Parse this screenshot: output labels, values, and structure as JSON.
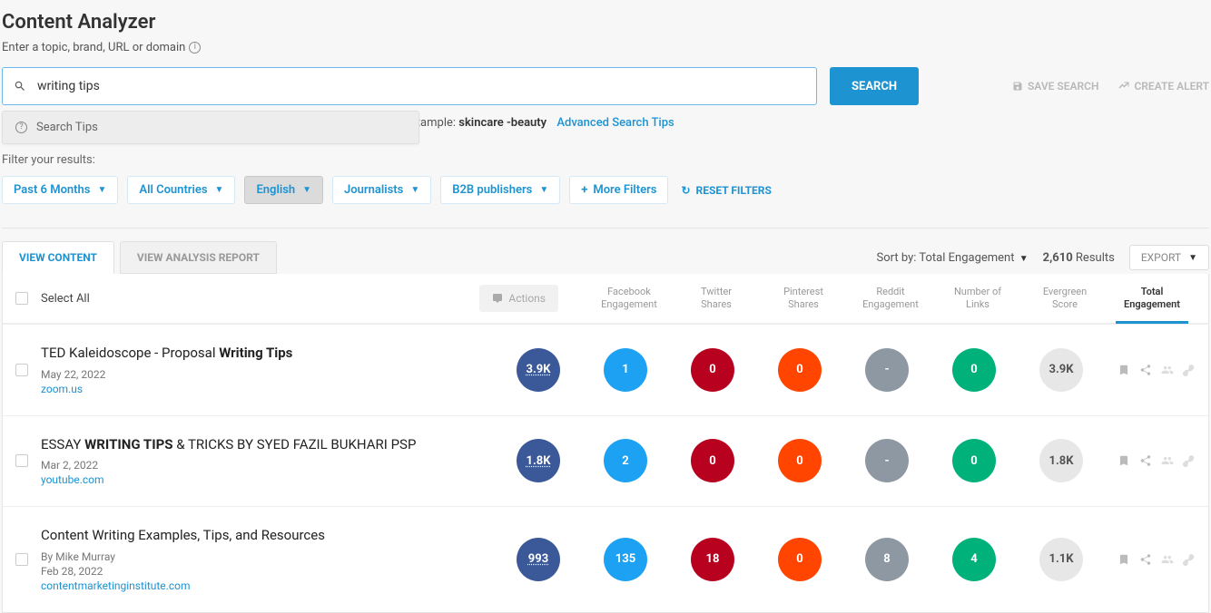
{
  "page_title": "Content Analyzer",
  "subtitle": "Enter a topic, brand, URL or domain",
  "search": {
    "value": "writing tips",
    "placeholder": ""
  },
  "search_button": "SEARCH",
  "header_actions": {
    "save": "SAVE SEARCH",
    "alert": "CREATE ALERT"
  },
  "tips_dropdown": "Search Tips",
  "tips_line_prefix": "                                                                                                                            rms, for example: ",
  "tips_line_example": "skincare -beauty",
  "advanced_tips": "Advanced Search Tips",
  "filter_label": "Filter your results:",
  "filters": [
    {
      "label": "Past 6 Months",
      "active": false
    },
    {
      "label": "All Countries",
      "active": false
    },
    {
      "label": "English",
      "active": true
    },
    {
      "label": "Journalists",
      "active": false
    },
    {
      "label": "B2B publishers",
      "active": false
    }
  ],
  "more_filters": "More Filters",
  "reset_filters": "RESET FILTERS",
  "tabs": {
    "content": "VIEW CONTENT",
    "analysis": "VIEW ANALYSIS REPORT"
  },
  "sort_by_label": "Sort by:",
  "sort_by_value": "Total Engagement",
  "result_count": "2,610",
  "results_label": "Results",
  "export": "EXPORT",
  "select_all": "Select All",
  "actions": "Actions",
  "columns": [
    {
      "l1": "Facebook",
      "l2": "Engagement",
      "color": "#3b5998"
    },
    {
      "l1": "Twitter",
      "l2": "Shares",
      "color": "#1da1f2"
    },
    {
      "l1": "Pinterest",
      "l2": "Shares",
      "color": "#b8001f"
    },
    {
      "l1": "Reddit",
      "l2": "Engagement",
      "color": "#ff4500"
    },
    {
      "l1": "Number of",
      "l2": "Links",
      "color": "#8e98a3"
    },
    {
      "l1": "Evergreen",
      "l2": "Score",
      "color": "#00b27a"
    },
    {
      "l1": "Total",
      "l2": "Engagement",
      "color": "#e7e7e7",
      "active": true
    }
  ],
  "rows": [
    {
      "title_pre": "TED Kaleidoscope - Proposal ",
      "title_bold": "Writing Tips",
      "title_post": "",
      "author": "",
      "date": "May 22, 2022",
      "domain": "zoom.us",
      "metrics": [
        "3.9K",
        "1",
        "0",
        "0",
        "-",
        "0",
        "3.9K"
      ],
      "dotted": [
        true,
        false,
        false,
        false,
        false,
        false,
        false
      ]
    },
    {
      "title_pre": "ESSAY ",
      "title_bold": "WRITING TIPS",
      "title_post": " & TRICKS BY SYED FAZIL BUKHARI PSP",
      "author": "",
      "date": "Mar 2, 2022",
      "domain": "youtube.com",
      "metrics": [
        "1.8K",
        "2",
        "0",
        "0",
        "-",
        "0",
        "1.8K"
      ],
      "dotted": [
        true,
        false,
        false,
        false,
        false,
        false,
        false
      ]
    },
    {
      "title_pre": "Content Writing Examples, Tips, and Resources",
      "title_bold": "",
      "title_post": "",
      "author": "By  Mike Murray",
      "date": "Feb 28, 2022",
      "domain": "contentmarketinginstitute.com",
      "metrics": [
        "993",
        "135",
        "18",
        "0",
        "8",
        "4",
        "1.1K"
      ],
      "dotted": [
        true,
        false,
        false,
        false,
        false,
        false,
        false
      ]
    }
  ]
}
